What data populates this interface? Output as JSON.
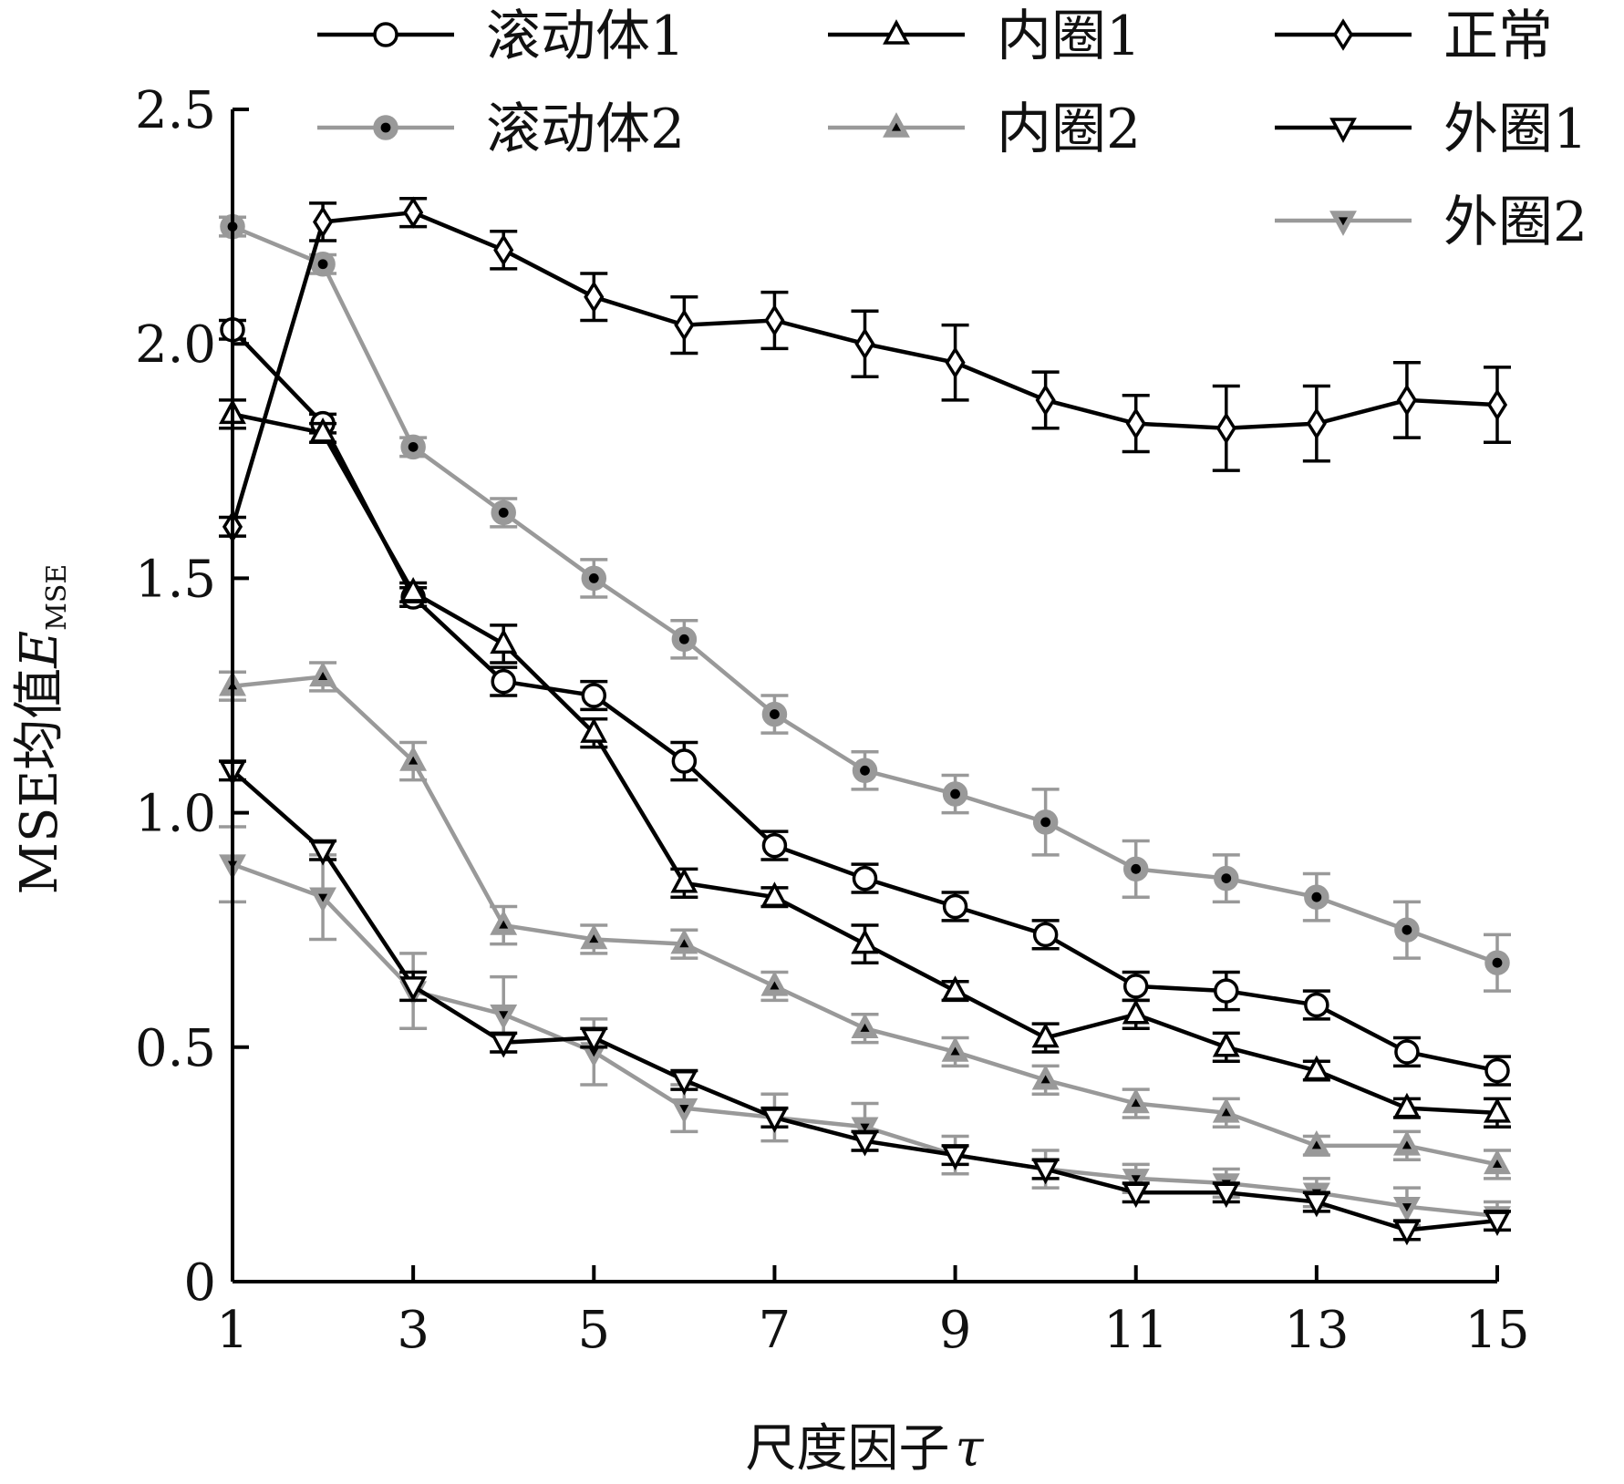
{
  "chart_data": {
    "type": "line",
    "xlabel": "尺度因子",
    "xlabel_symbol": "τ",
    "ylabel": "MSE均值",
    "ylabel_symbol": "E",
    "ylabel_subscript": "MSE",
    "xlim": [
      1,
      15
    ],
    "ylim": [
      0,
      2.5
    ],
    "x_ticks": [
      "1",
      "3",
      "5",
      "7",
      "9",
      "11",
      "13",
      "15"
    ],
    "y_ticks": [
      "0",
      "0.5",
      "1.0",
      "1.5",
      "2.0",
      "2.5"
    ],
    "grid": false,
    "legend_position": "top-right",
    "x": [
      1,
      2,
      3,
      4,
      5,
      6,
      7,
      8,
      9,
      10,
      11,
      12,
      13,
      14,
      15
    ],
    "series": [
      {
        "name": "滚动体1",
        "color": "#000000",
        "marker": "circle-open",
        "values": [
          2.03,
          1.83,
          1.46,
          1.28,
          1.25,
          1.11,
          0.93,
          0.86,
          0.8,
          0.74,
          0.63,
          0.62,
          0.59,
          0.49,
          0.45
        ],
        "errors": [
          0.02,
          0.02,
          0.02,
          0.03,
          0.03,
          0.04,
          0.03,
          0.03,
          0.03,
          0.03,
          0.03,
          0.04,
          0.03,
          0.03,
          0.03
        ]
      },
      {
        "name": "内圈1",
        "color": "#000000",
        "marker": "triangle-up-open",
        "values": [
          1.85,
          1.81,
          1.47,
          1.36,
          1.17,
          0.85,
          0.82,
          0.72,
          0.62,
          0.52,
          0.57,
          0.5,
          0.45,
          0.37,
          0.36
        ],
        "errors": [
          0.03,
          0.02,
          0.02,
          0.04,
          0.03,
          0.03,
          0.02,
          0.04,
          0.02,
          0.03,
          0.03,
          0.03,
          0.02,
          0.02,
          0.03
        ]
      },
      {
        "name": "正常",
        "color": "#000000",
        "marker": "diamond-open",
        "values": [
          1.61,
          2.26,
          2.28,
          2.2,
          2.1,
          2.04,
          2.05,
          2.0,
          1.96,
          1.88,
          1.83,
          1.82,
          1.83,
          1.88,
          1.87
        ],
        "errors": [
          0.02,
          0.04,
          0.03,
          0.04,
          0.05,
          0.06,
          0.06,
          0.07,
          0.08,
          0.06,
          0.06,
          0.09,
          0.08,
          0.08,
          0.08
        ]
      },
      {
        "name": "滚动体2",
        "color": "#999999",
        "marker": "circle-filled",
        "values": [
          2.25,
          2.17,
          1.78,
          1.64,
          1.5,
          1.37,
          1.21,
          1.09,
          1.04,
          0.98,
          0.88,
          0.86,
          0.82,
          0.75,
          0.68
        ],
        "errors": [
          0.02,
          0.02,
          0.02,
          0.03,
          0.04,
          0.04,
          0.04,
          0.04,
          0.04,
          0.07,
          0.06,
          0.05,
          0.05,
          0.06,
          0.06
        ]
      },
      {
        "name": "内圈2",
        "color": "#999999",
        "marker": "triangle-up-filled",
        "values": [
          1.27,
          1.29,
          1.11,
          0.76,
          0.73,
          0.72,
          0.63,
          0.54,
          0.49,
          0.43,
          0.38,
          0.36,
          0.29,
          0.29,
          0.25
        ],
        "errors": [
          0.03,
          0.03,
          0.04,
          0.04,
          0.03,
          0.03,
          0.03,
          0.03,
          0.03,
          0.03,
          0.03,
          0.03,
          0.02,
          0.03,
          0.03
        ]
      },
      {
        "name": "外圈1",
        "color": "#000000",
        "marker": "triangle-down-open",
        "values": [
          1.09,
          0.92,
          0.63,
          0.51,
          0.52,
          0.43,
          0.35,
          0.3,
          0.27,
          0.24,
          0.19,
          0.19,
          0.17,
          0.11,
          0.13
        ],
        "errors": [
          0.02,
          0.02,
          0.03,
          0.02,
          0.02,
          0.02,
          0.02,
          0.02,
          0.02,
          0.02,
          0.02,
          0.02,
          0.02,
          0.02,
          0.02
        ]
      },
      {
        "name": "外圈2",
        "color": "#999999",
        "marker": "triangle-down-filled",
        "values": [
          0.89,
          0.82,
          0.62,
          0.57,
          0.49,
          0.37,
          0.35,
          0.33,
          0.27,
          0.24,
          0.22,
          0.21,
          0.19,
          0.16,
          0.14
        ],
        "errors": [
          0.08,
          0.09,
          0.08,
          0.08,
          0.07,
          0.05,
          0.05,
          0.05,
          0.04,
          0.04,
          0.03,
          0.03,
          0.03,
          0.04,
          0.03
        ]
      }
    ]
  }
}
